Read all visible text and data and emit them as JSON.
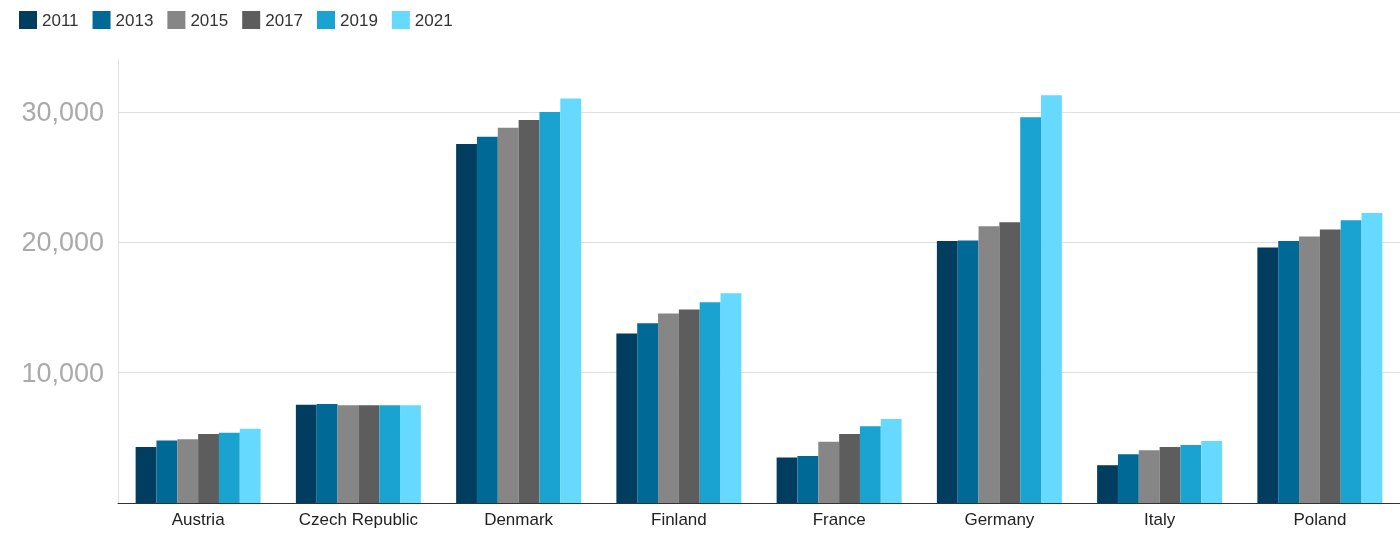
{
  "chart_data": {
    "type": "bar",
    "categories": [
      "Austria",
      "Czech Republic",
      "Denmark",
      "Finland",
      "France",
      "Germany",
      "Italy",
      "Poland"
    ],
    "series": [
      {
        "name": "2011",
        "color": "#003d5e",
        "values": [
          4300,
          7550,
          27550,
          13000,
          3500,
          20100,
          2900,
          19600
        ]
      },
      {
        "name": "2013",
        "color": "#006996",
        "values": [
          4800,
          7600,
          28100,
          13800,
          3600,
          20150,
          3750,
          20100
        ]
      },
      {
        "name": "2015",
        "color": "#868686",
        "values": [
          4900,
          7500,
          28800,
          14550,
          4700,
          21250,
          4050,
          20450
        ]
      },
      {
        "name": "2017",
        "color": "#5d5d5d",
        "values": [
          5300,
          7500,
          29400,
          14850,
          5300,
          21550,
          4300,
          21000
        ]
      },
      {
        "name": "2019",
        "color": "#1aa3d1",
        "values": [
          5400,
          7500,
          30000,
          15400,
          5900,
          29600,
          4450,
          21700
        ]
      },
      {
        "name": "2021",
        "color": "#66d9ff",
        "values": [
          5700,
          7500,
          31050,
          16100,
          6450,
          31300,
          4750,
          22250
        ]
      }
    ],
    "ylim": [
      0,
      34000
    ],
    "yticks": [
      {
        "value": 0,
        "label": null
      },
      {
        "value": 10000,
        "label": "10,000"
      },
      {
        "value": 20000,
        "label": "20,000"
      },
      {
        "value": 30000,
        "label": "30,000"
      }
    ],
    "grid": "y",
    "legend": "top left"
  }
}
